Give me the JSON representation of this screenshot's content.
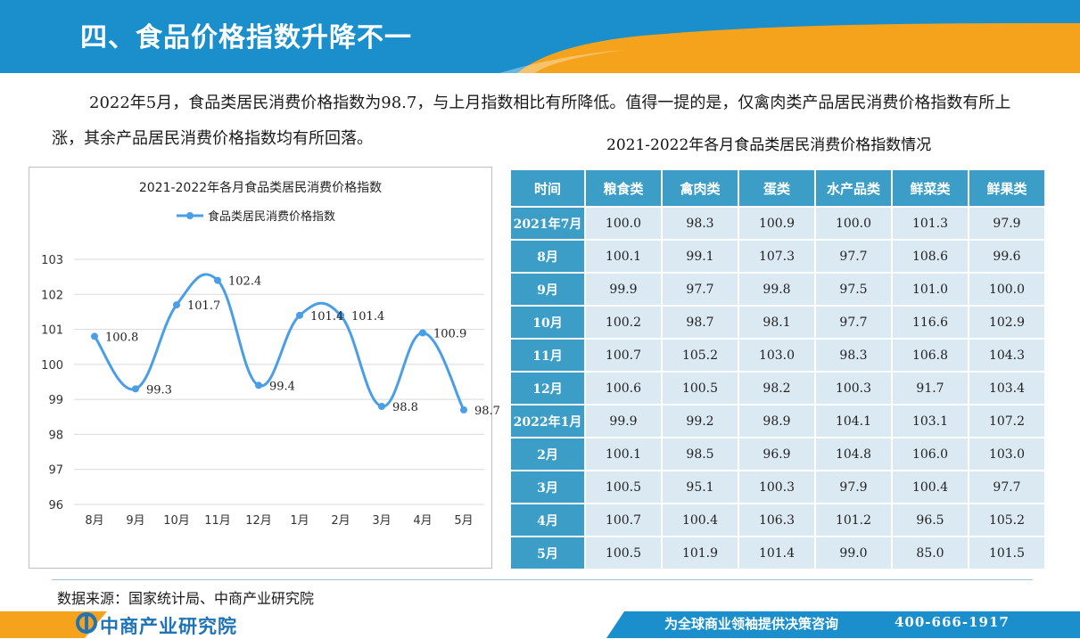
{
  "header": {
    "title": "四、食品价格指数升降不一"
  },
  "intro": {
    "text": "2022年5月，食品类居民消费价格指数为98.7，与上月指数相比有所降低。值得一提的是，仅禽肉类产品居民消费价格指数有所上涨，其余产品居民消费价格指数均有所回落。"
  },
  "colors": {
    "banner": "#1b8fcb",
    "accent": "#f5a21d",
    "line": "#4a9ee6",
    "table_header": "#3c9ec6",
    "table_cell": "#dbe9f3"
  },
  "chart_data": {
    "type": "line",
    "title": "2021-2022年各月食品类居民消费价格指数",
    "categories": [
      "8月",
      "9月",
      "10月",
      "11月",
      "12月",
      "1月",
      "2月",
      "3月",
      "4月",
      "5月"
    ],
    "series": [
      {
        "name": "食品类居民消费价格指数",
        "values": [
          100.8,
          99.3,
          101.7,
          102.4,
          99.4,
          101.4,
          101.4,
          98.8,
          100.9,
          98.7
        ],
        "labels": [
          "100.8",
          "99.3",
          "101.7",
          "102.4",
          "99.4",
          "101.4",
          "101.4",
          "98.8",
          "100.9",
          "98.7"
        ]
      }
    ],
    "ylim": [
      96,
      103
    ],
    "yticks": [
      "96",
      "97",
      "98",
      "99",
      "100",
      "101",
      "102",
      "103"
    ],
    "grid": true,
    "legend": "top-center"
  },
  "table": {
    "title": "2021-2022年各月食品类居民消费价格指数情况",
    "columns": [
      "时间",
      "粮食类",
      "禽肉类",
      "蛋类",
      "水产品类",
      "鲜菜类",
      "鲜果类"
    ],
    "rows": [
      {
        "label": "2021年7月",
        "values": [
          "100.0",
          "98.3",
          "100.9",
          "100.0",
          "101.3",
          "97.9"
        ]
      },
      {
        "label": "8月",
        "values": [
          "100.1",
          "99.1",
          "107.3",
          "97.7",
          "108.6",
          "99.6"
        ]
      },
      {
        "label": "9月",
        "values": [
          "99.9",
          "97.7",
          "99.8",
          "97.5",
          "101.0",
          "100.0"
        ]
      },
      {
        "label": "10月",
        "values": [
          "100.2",
          "98.7",
          "98.1",
          "97.7",
          "116.6",
          "102.9"
        ]
      },
      {
        "label": "11月",
        "values": [
          "100.7",
          "105.2",
          "103.0",
          "98.3",
          "106.8",
          "104.3"
        ]
      },
      {
        "label": "12月",
        "values": [
          "100.6",
          "100.5",
          "98.2",
          "100.3",
          "91.7",
          "103.4"
        ]
      },
      {
        "label": "2022年1月",
        "values": [
          "99.9",
          "99.2",
          "98.9",
          "104.1",
          "103.1",
          "107.2"
        ]
      },
      {
        "label": "2月",
        "values": [
          "100.1",
          "98.5",
          "96.9",
          "104.8",
          "106.0",
          "103.0"
        ]
      },
      {
        "label": "3月",
        "values": [
          "100.5",
          "95.1",
          "100.3",
          "97.9",
          "100.4",
          "97.7"
        ]
      },
      {
        "label": "4月",
        "values": [
          "100.7",
          "100.4",
          "106.3",
          "101.2",
          "96.5",
          "105.2"
        ]
      },
      {
        "label": "5月",
        "values": [
          "100.5",
          "101.9",
          "101.4",
          "99.0",
          "85.0",
          "101.5"
        ]
      }
    ]
  },
  "source": {
    "text": "数据来源：国家统计局、中商产业研究院"
  },
  "footer": {
    "brand": "中商产业研究院",
    "slogan": "为全球商业领袖提供决策咨询",
    "phone": "400-666-1917"
  }
}
